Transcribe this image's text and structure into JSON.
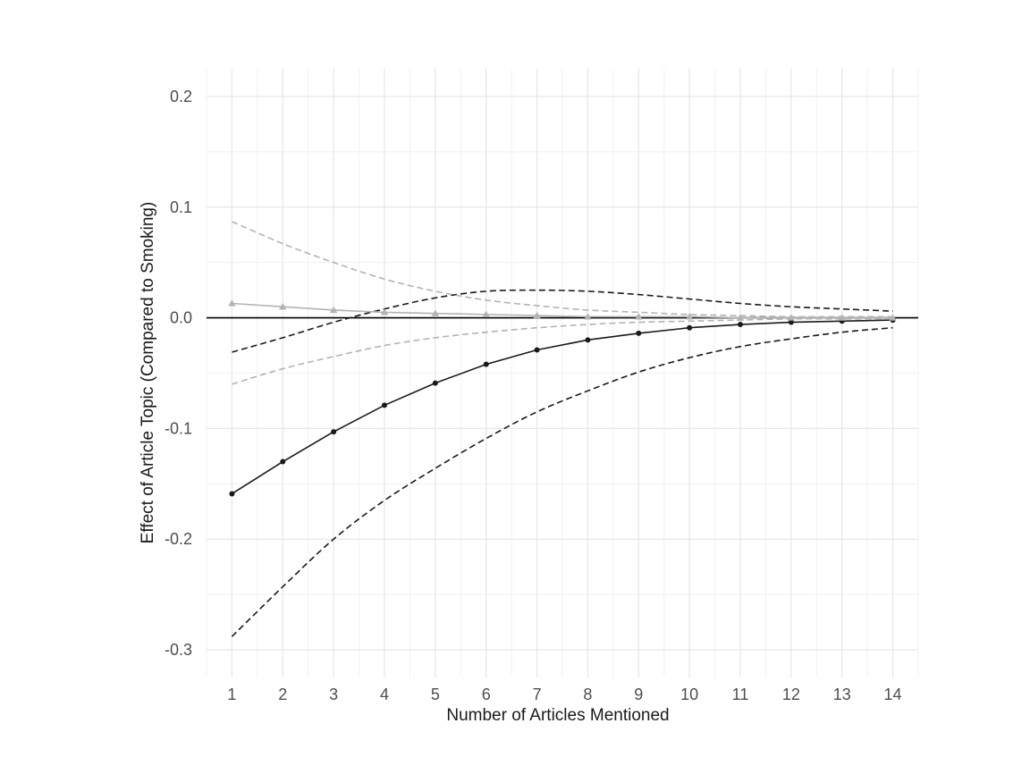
{
  "chart_data": {
    "type": "line",
    "title": "",
    "xlabel": "Number of Articles Mentioned",
    "ylabel": "Effect of Article Topic (Compared to Smoking)",
    "x": [
      1,
      2,
      3,
      4,
      5,
      6,
      7,
      8,
      9,
      10,
      11,
      12,
      13,
      14
    ],
    "x_ticks": [
      1,
      2,
      3,
      4,
      5,
      6,
      7,
      8,
      9,
      10,
      11,
      12,
      13,
      14
    ],
    "y_ticks": [
      -0.3,
      -0.2,
      -0.1,
      0.0,
      0.1,
      0.2
    ],
    "y_tick_labels": [
      "-0.3",
      "-0.2",
      "-0.1",
      "0.0",
      "0.1",
      "0.2"
    ],
    "xlim": [
      0.5,
      14.5
    ],
    "ylim": [
      -0.325,
      0.225
    ],
    "grid": true,
    "reference_line_y": 0.0,
    "series": [
      {
        "color": "#1a1a1a",
        "marker": "circle",
        "estimate": [
          -0.159,
          -0.13,
          -0.103,
          -0.079,
          -0.059,
          -0.042,
          -0.029,
          -0.02,
          -0.014,
          -0.009,
          -0.006,
          -0.004,
          -0.003,
          -0.002
        ],
        "upper": [
          -0.031,
          -0.018,
          -0.004,
          0.008,
          0.018,
          0.024,
          0.025,
          0.024,
          0.021,
          0.017,
          0.013,
          0.01,
          0.008,
          0.006
        ],
        "lower": [
          -0.288,
          -0.243,
          -0.2,
          -0.165,
          -0.136,
          -0.109,
          -0.085,
          -0.066,
          -0.049,
          -0.036,
          -0.026,
          -0.019,
          -0.013,
          -0.009
        ]
      },
      {
        "color": "#b3b3b3",
        "marker": "triangle",
        "estimate": [
          0.013,
          0.01,
          0.007,
          0.005,
          0.004,
          0.003,
          0.002,
          0.001,
          0.001,
          0.001,
          0.0,
          0.0,
          0.0,
          0.0
        ],
        "upper": [
          0.087,
          0.067,
          0.05,
          0.035,
          0.024,
          0.016,
          0.011,
          0.007,
          0.005,
          0.003,
          0.002,
          0.001,
          0.001,
          0.001
        ],
        "lower": [
          -0.06,
          -0.046,
          -0.035,
          -0.025,
          -0.018,
          -0.013,
          -0.009,
          -0.006,
          -0.004,
          -0.003,
          -0.002,
          -0.001,
          -0.001,
          -0.001
        ]
      }
    ]
  }
}
